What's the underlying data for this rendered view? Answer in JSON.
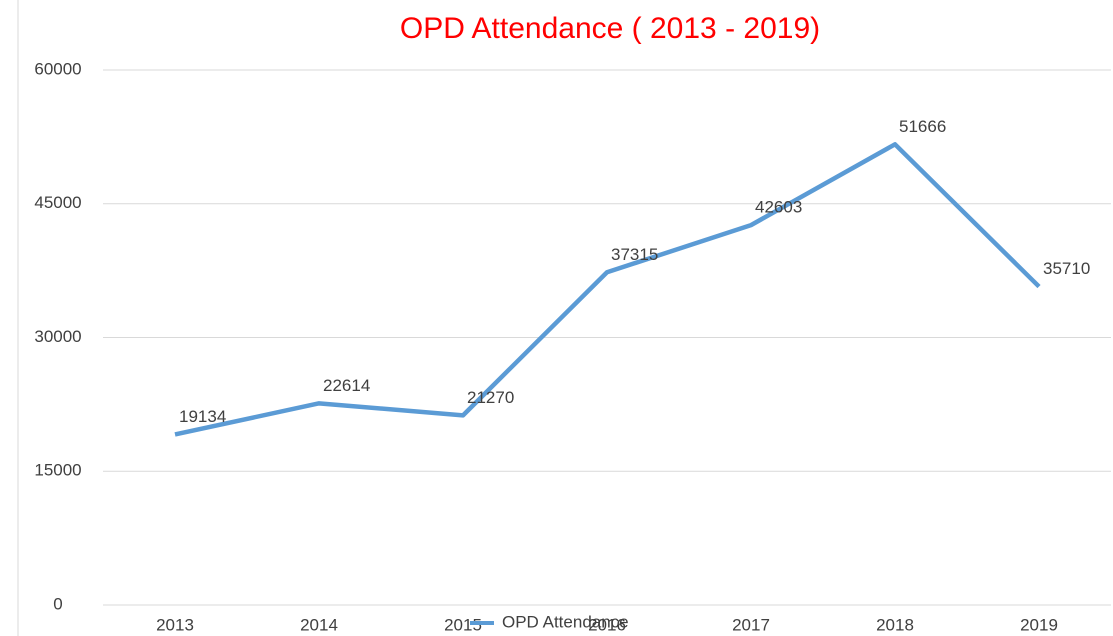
{
  "chart_data": {
    "type": "line",
    "title": "OPD Attendance ( 2013 - 2019)",
    "categories": [
      "2013",
      "2014",
      "2015",
      "2016",
      "2017",
      "2018",
      "2019"
    ],
    "series": [
      {
        "name": "OPD Attendance",
        "color": "#5b9bd5",
        "values": [
          19134,
          22614,
          21270,
          37315,
          42603,
          51666,
          35710
        ]
      }
    ],
    "ylim": [
      0,
      60000
    ],
    "yticks": [
      0,
      15000,
      30000,
      45000,
      60000
    ],
    "grid": true,
    "legend": "bottom",
    "title_color": "#ff0000"
  }
}
